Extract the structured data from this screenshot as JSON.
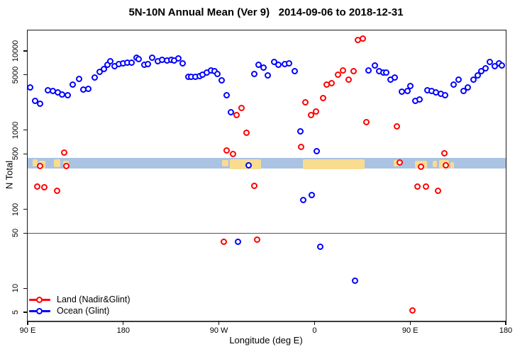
{
  "title": "5N-10N Annual Mean (Ver 9)   2014-09-06 to 2018-12-31",
  "chart_data": {
    "type": "scatter",
    "title": "5N-10N Annual Mean (Ver 9)   2014-09-06 to 2018-12-31",
    "xlabel": "Longitude (deg E)",
    "ylabel": "N Total",
    "x_axis": {
      "tick_offsets_deg": [
        0,
        90,
        180,
        270,
        360,
        450
      ],
      "tick_labels": [
        "90 E",
        "180",
        "90 W",
        "0",
        "90 E",
        "180"
      ],
      "range_deg": [
        0,
        450
      ],
      "start_longitude": "90 E"
    },
    "y_axis": {
      "scale": "log",
      "tick_values": [
        10000,
        5000,
        1000,
        500,
        100,
        50,
        10,
        5
      ],
      "range": [
        3.9,
        18200
      ]
    },
    "grid": "off",
    "legend_position": "bottom-left",
    "reference_line_y": 50,
    "map_band": {
      "value_range": [
        330,
        445
      ],
      "ocean_color": "#aac3e3",
      "land_color": "#f9dc90",
      "land_segments_deg": [
        {
          "from": 4.5,
          "to": 9.5,
          "t": 0.1,
          "b": 0.8
        },
        {
          "from": 10.5,
          "to": 16.5,
          "t": 0.25,
          "b": 1.0
        },
        {
          "from": 25.0,
          "to": 31.0,
          "t": 0.15,
          "b": 0.9
        },
        {
          "from": 33.5,
          "to": 39.0,
          "t": 0.3,
          "b": 1.0
        },
        {
          "from": 183.0,
          "to": 189.0,
          "t": 0.2,
          "b": 0.85
        },
        {
          "from": 190.0,
          "to": 219.5,
          "t": 0.15,
          "b": 1.12
        },
        {
          "from": 259.0,
          "to": 317.0,
          "t": 0.1,
          "b": 1.12
        },
        {
          "from": 344.5,
          "to": 350.0,
          "t": 0.2,
          "b": 0.8
        },
        {
          "from": 364.5,
          "to": 376.0,
          "t": 0.25,
          "b": 1.05
        },
        {
          "from": 381.0,
          "to": 385.0,
          "t": 0.3,
          "b": 0.9
        },
        {
          "from": 387.0,
          "to": 396.5,
          "t": 0.2,
          "b": 1.0
        },
        {
          "from": 398.0,
          "to": 401.0,
          "t": 0.4,
          "b": 1.0
        }
      ]
    },
    "series": [
      {
        "name": "Land (Nadir&Glint)",
        "color": "#ff0000",
        "points": [
          [
            8.7,
            192
          ],
          [
            11.4,
            350
          ],
          [
            16.0,
            188
          ],
          [
            28.0,
            170
          ],
          [
            34.1,
            519
          ],
          [
            36.1,
            350
          ],
          [
            184.3,
            39
          ],
          [
            187.6,
            552
          ],
          [
            193.0,
            498
          ],
          [
            196.3,
            1550
          ],
          [
            201.6,
            1910
          ],
          [
            206.3,
            927
          ],
          [
            213.0,
            196
          ],
          [
            216.3,
            41
          ],
          [
            257.7,
            612
          ],
          [
            261.1,
            2250
          ],
          [
            266.4,
            1550
          ],
          [
            271.1,
            1720
          ],
          [
            277.8,
            2550
          ],
          [
            281.1,
            3780
          ],
          [
            286.4,
            3940
          ],
          [
            291.8,
            5060
          ],
          [
            297.1,
            5710
          ],
          [
            302.4,
            4370
          ],
          [
            307.1,
            5600
          ],
          [
            311.1,
            13900
          ],
          [
            315.8,
            14200
          ],
          [
            319.1,
            1260
          ],
          [
            347.2,
            1120
          ],
          [
            350.5,
            388
          ],
          [
            362.5,
            5.3
          ],
          [
            367.2,
            192
          ],
          [
            370.5,
            344
          ],
          [
            375.2,
            192
          ],
          [
            386.5,
            170
          ],
          [
            392.5,
            508
          ],
          [
            393.8,
            357
          ]
        ]
      },
      {
        "name": "Ocean (Glint)",
        "color": "#0000ff",
        "points": [
          [
            2.0,
            3480
          ],
          [
            6.7,
            2350
          ],
          [
            12.0,
            2160
          ],
          [
            18.7,
            3210
          ],
          [
            24.0,
            3140
          ],
          [
            28.7,
            3010
          ],
          [
            32.7,
            2830
          ],
          [
            37.4,
            2770
          ],
          [
            42.7,
            3780
          ],
          [
            48.7,
            4470
          ],
          [
            52.7,
            3270
          ],
          [
            57.4,
            3340
          ],
          [
            62.8,
            4650
          ],
          [
            68.1,
            5480
          ],
          [
            72.1,
            5960
          ],
          [
            75.4,
            6750
          ],
          [
            78.1,
            7480
          ],
          [
            82.1,
            6470
          ],
          [
            85.5,
            6890
          ],
          [
            89.5,
            7030
          ],
          [
            94.1,
            7180
          ],
          [
            98.1,
            7180
          ],
          [
            102.2,
            8300
          ],
          [
            104.8,
            7970
          ],
          [
            109.5,
            6750
          ],
          [
            113.5,
            6890
          ],
          [
            117.5,
            8300
          ],
          [
            122.2,
            7480
          ],
          [
            126.2,
            7800
          ],
          [
            130.9,
            7640
          ],
          [
            134.9,
            7800
          ],
          [
            138.2,
            7640
          ],
          [
            142.2,
            8130
          ],
          [
            146.2,
            7030
          ],
          [
            150.9,
            4750
          ],
          [
            153.6,
            4750
          ],
          [
            157.6,
            4750
          ],
          [
            161.6,
            4850
          ],
          [
            164.9,
            5060
          ],
          [
            168.9,
            5370
          ],
          [
            172.3,
            5710
          ],
          [
            175.6,
            5600
          ],
          [
            178.3,
            5170
          ],
          [
            182.3,
            4280
          ],
          [
            187.0,
            2780
          ],
          [
            191.0,
            1690
          ],
          [
            197.7,
            39
          ],
          [
            208.3,
            357
          ],
          [
            213.0,
            5160
          ],
          [
            217.0,
            6750
          ],
          [
            222.3,
            6210
          ],
          [
            226.3,
            4950
          ],
          [
            231.7,
            7330
          ],
          [
            236.3,
            6750
          ],
          [
            241.7,
            6890
          ],
          [
            245.7,
            7030
          ],
          [
            251.7,
            5600
          ],
          [
            256.4,
            966
          ],
          [
            259.7,
            132
          ],
          [
            267.7,
            150
          ],
          [
            272.4,
            541
          ],
          [
            275.1,
            33.8
          ],
          [
            307.8,
            12.5
          ],
          [
            321.1,
            5710
          ],
          [
            326.5,
            6610
          ],
          [
            330.5,
            5600
          ],
          [
            334.5,
            5370
          ],
          [
            337.8,
            5370
          ],
          [
            341.8,
            4370
          ],
          [
            345.8,
            4650
          ],
          [
            352.5,
            3080
          ],
          [
            357.2,
            3140
          ],
          [
            360.5,
            3630
          ],
          [
            365.2,
            2350
          ],
          [
            369.2,
            2450
          ],
          [
            376.5,
            3210
          ],
          [
            379.9,
            3140
          ],
          [
            384.5,
            3010
          ],
          [
            389.2,
            2890
          ],
          [
            393.2,
            2770
          ],
          [
            401.2,
            3780
          ],
          [
            405.9,
            4370
          ],
          [
            410.6,
            3140
          ],
          [
            414.6,
            3480
          ],
          [
            419.9,
            4370
          ],
          [
            423.9,
            4950
          ],
          [
            427.2,
            5600
          ],
          [
            431.2,
            6080
          ],
          [
            435.2,
            7330
          ],
          [
            439.9,
            6470
          ],
          [
            443.9,
            7030
          ],
          [
            446.6,
            6610
          ]
        ]
      }
    ]
  }
}
